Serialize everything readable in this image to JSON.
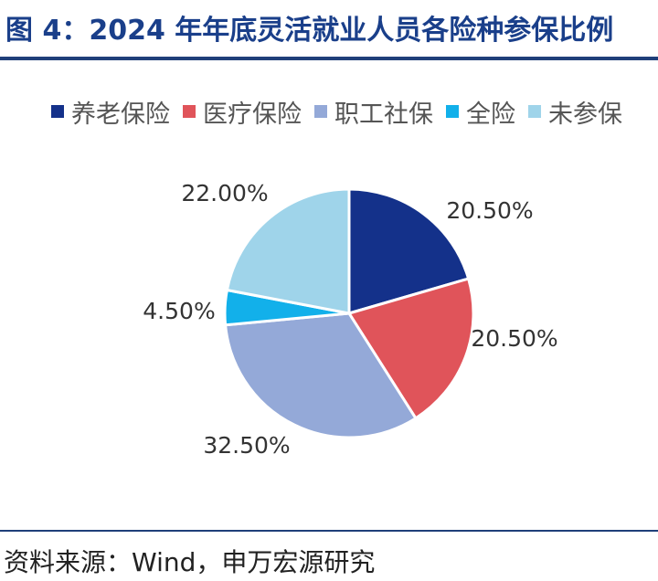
{
  "header": {
    "title": "图 4：2024 年年底灵活就业人员各险种参保比例"
  },
  "footer": {
    "source": "资料来源：Wind，申万宏源研究"
  },
  "chart_data": {
    "type": "pie",
    "title": "",
    "legend_position": "top",
    "series": [
      {
        "name": "养老保险",
        "value": 20.5,
        "label": "20.50%",
        "color": "#14318a"
      },
      {
        "name": "医疗保险",
        "value": 20.5,
        "label": "20.50%",
        "color": "#e0545a"
      },
      {
        "name": "职工社保",
        "value": 32.5,
        "label": "32.50%",
        "color": "#94a9d8"
      },
      {
        "name": "全险",
        "value": 4.5,
        "label": "4.50%",
        "color": "#12b0ea"
      },
      {
        "name": "未参保",
        "value": 22.0,
        "label": "22.00%",
        "color": "#9fd4ea"
      }
    ]
  }
}
